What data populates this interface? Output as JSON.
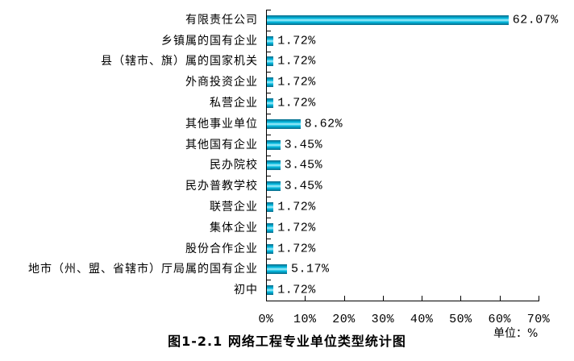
{
  "chart_data": {
    "type": "bar",
    "orientation": "horizontal",
    "title": "图1-2.1 网络工程专业单位类型统计图",
    "unit_label": "单位：%",
    "xlabel": "",
    "ylabel": "",
    "xlim": [
      0,
      70
    ],
    "x_ticks": [
      "0%",
      "10%",
      "20%",
      "30%",
      "40%",
      "50%",
      "60%",
      "70%"
    ],
    "grid": false,
    "legend": false,
    "categories": [
      "有限责任公司",
      "乡镇属的国有企业",
      "县（辖市、旗）属的国家机关",
      "外商投资企业",
      "私营企业",
      "其他事业单位",
      "其他国有企业",
      "民办院校",
      "民办普教学校",
      "联营企业",
      "集体企业",
      "股份合作企业",
      "地市（州、盟、省辖市）厅局属的国有企业",
      "初中"
    ],
    "values": [
      62.07,
      1.72,
      1.72,
      1.72,
      1.72,
      8.62,
      3.45,
      3.45,
      3.45,
      1.72,
      1.72,
      1.72,
      5.17,
      1.72
    ],
    "value_labels": [
      "62.07%",
      "1.72%",
      "1.72%",
      "1.72%",
      "1.72%",
      "8.62%",
      "3.45%",
      "3.45%",
      "3.45%",
      "1.72%",
      "1.72%",
      "1.72%",
      "5.17%",
      "1.72%"
    ],
    "bar_colors": {
      "edge": "#0a6a88",
      "mid": "#00b8de",
      "highlight": "#a5eefb"
    },
    "axis_color": "#000000",
    "text_color": "#000000",
    "background": "#ffffff"
  }
}
